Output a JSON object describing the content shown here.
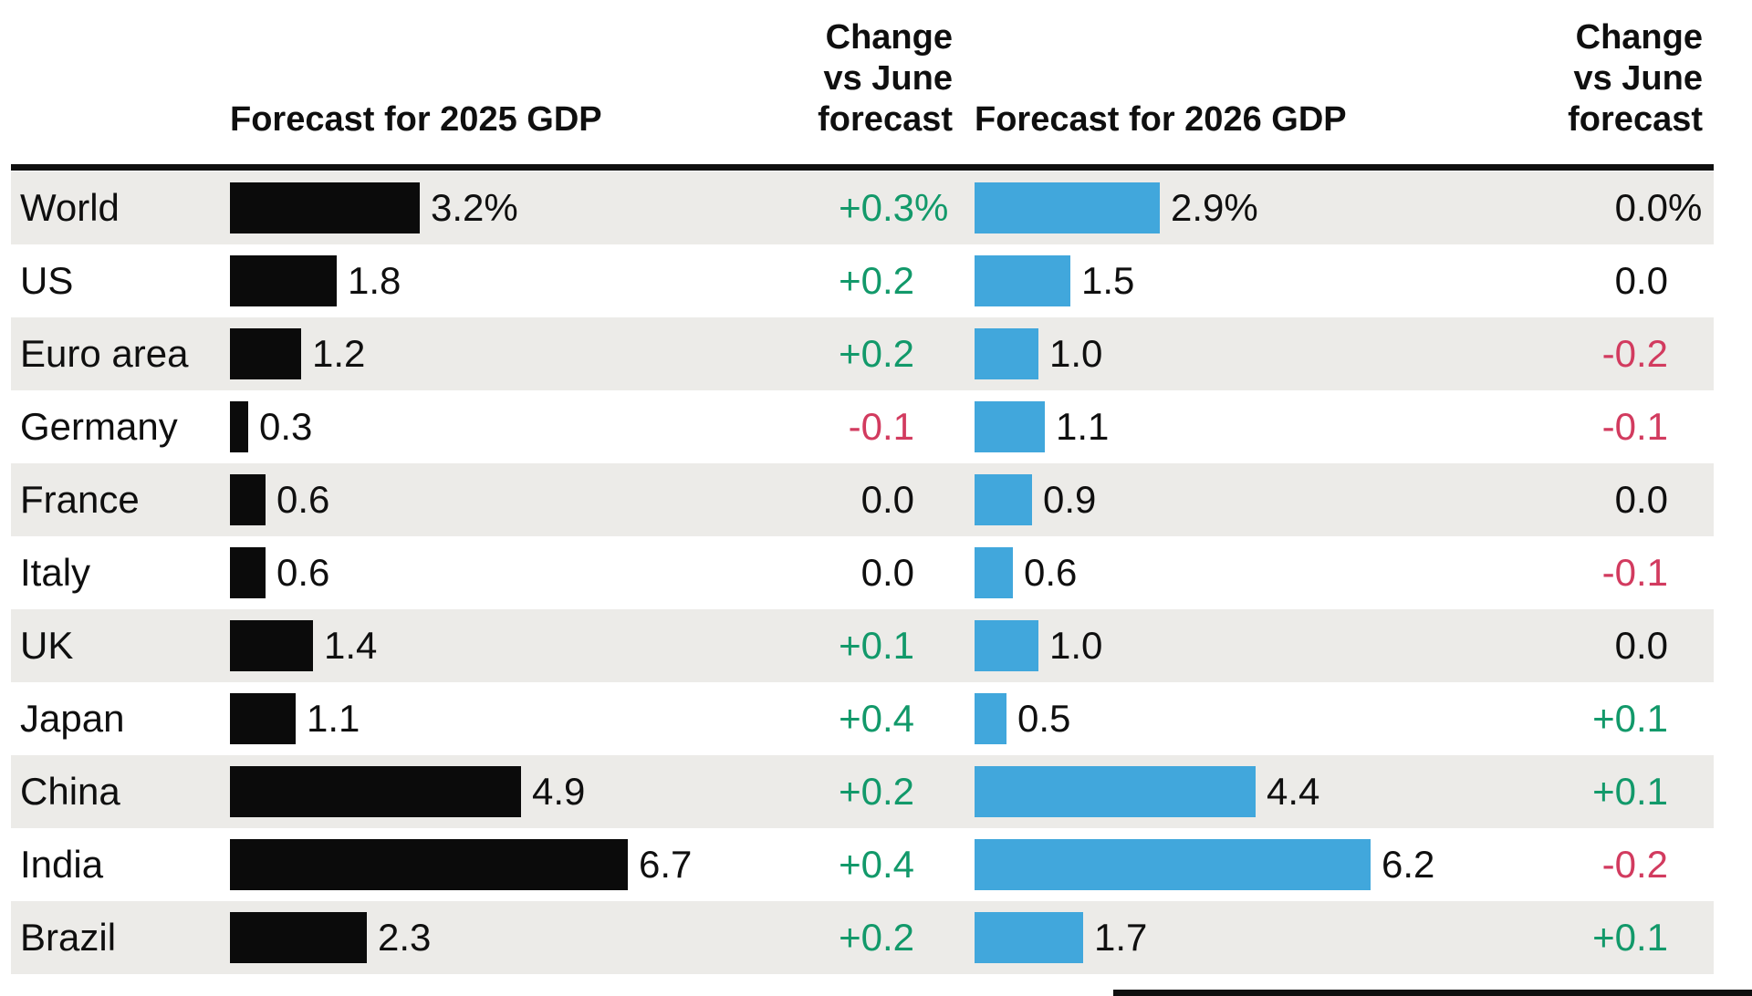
{
  "headers": {
    "forecast_2025": "Forecast for 2025 GDP",
    "change_2025_lines": [
      "Change",
      "vs June",
      "forecast"
    ],
    "forecast_2026": "Forecast for 2026 GDP",
    "change_2026_lines": [
      "Change",
      "vs June",
      "forecast"
    ]
  },
  "colors": {
    "ink": "#0f0f0f",
    "bar_black": "#0b0b0b",
    "bar_blue": "#41a7dc",
    "green": "#12996a",
    "red": "#d23b5f",
    "band_gray": "#ecebe8",
    "background": "#ffffff"
  },
  "chart_data": {
    "type": "bar",
    "orientation": "horizontal",
    "layout": "table with two bar columns and two change columns, zebra striping",
    "unit": "%",
    "categories": [
      "World",
      "US",
      "Euro area",
      "Germany",
      "France",
      "Italy",
      "UK",
      "Japan",
      "China",
      "India",
      "Brazil"
    ],
    "series": [
      {
        "name": "Forecast for 2025 GDP",
        "bar_color": "#0b0b0b",
        "values": [
          3.2,
          1.8,
          1.2,
          0.3,
          0.6,
          0.6,
          1.4,
          1.1,
          4.9,
          6.7,
          2.3
        ]
      },
      {
        "name": "Change vs June forecast (2025)",
        "values": [
          0.3,
          0.2,
          0.2,
          -0.1,
          0.0,
          0.0,
          0.1,
          0.4,
          0.2,
          0.4,
          0.2
        ]
      },
      {
        "name": "Forecast for 2026 GDP",
        "bar_color": "#41a7dc",
        "values": [
          2.9,
          1.5,
          1.0,
          1.1,
          0.9,
          0.6,
          1.0,
          0.5,
          4.4,
          6.2,
          1.7
        ]
      },
      {
        "name": "Change vs June forecast (2026)",
        "values": [
          0.0,
          0.0,
          -0.2,
          -0.1,
          0.0,
          -0.1,
          0.0,
          0.1,
          0.1,
          -0.2,
          0.1
        ]
      }
    ],
    "rows": [
      {
        "label": "World",
        "gdp_2025": 3.2,
        "gdp_2025_display": "3.2%",
        "change_2025_display": "+0.3",
        "gdp_2026": 2.9,
        "gdp_2026_display": "2.9%",
        "change_2026_display": "0.0",
        "percent_sign_on_changes": true
      },
      {
        "label": "US",
        "gdp_2025": 1.8,
        "gdp_2025_display": "1.8",
        "change_2025_display": "+0.2",
        "gdp_2026": 1.5,
        "gdp_2026_display": "1.5",
        "change_2026_display": "0.0",
        "percent_sign_on_changes": false
      },
      {
        "label": "Euro area",
        "gdp_2025": 1.2,
        "gdp_2025_display": "1.2",
        "change_2025_display": "+0.2",
        "gdp_2026": 1.0,
        "gdp_2026_display": "1.0",
        "change_2026_display": "-0.2",
        "percent_sign_on_changes": false
      },
      {
        "label": "Germany",
        "gdp_2025": 0.3,
        "gdp_2025_display": "0.3",
        "change_2025_display": "-0.1",
        "gdp_2026": 1.1,
        "gdp_2026_display": "1.1",
        "change_2026_display": "-0.1",
        "percent_sign_on_changes": false
      },
      {
        "label": "France",
        "gdp_2025": 0.6,
        "gdp_2025_display": "0.6",
        "change_2025_display": "0.0",
        "gdp_2026": 0.9,
        "gdp_2026_display": "0.9",
        "change_2026_display": "0.0",
        "percent_sign_on_changes": false
      },
      {
        "label": "Italy",
        "gdp_2025": 0.6,
        "gdp_2025_display": "0.6",
        "change_2025_display": "0.0",
        "gdp_2026": 0.6,
        "gdp_2026_display": "0.6",
        "change_2026_display": "-0.1",
        "percent_sign_on_changes": false
      },
      {
        "label": "UK",
        "gdp_2025": 1.4,
        "gdp_2025_display": "1.4",
        "change_2025_display": "+0.1",
        "gdp_2026": 1.0,
        "gdp_2026_display": "1.0",
        "change_2026_display": "0.0",
        "percent_sign_on_changes": false
      },
      {
        "label": "Japan",
        "gdp_2025": 1.1,
        "gdp_2025_display": "1.1",
        "change_2025_display": "+0.4",
        "gdp_2026": 0.5,
        "gdp_2026_display": "0.5",
        "change_2026_display": "+0.1",
        "percent_sign_on_changes": false
      },
      {
        "label": "China",
        "gdp_2025": 4.9,
        "gdp_2025_display": "4.9",
        "change_2025_display": "+0.2",
        "gdp_2026": 4.4,
        "gdp_2026_display": "4.4",
        "change_2026_display": "+0.1",
        "percent_sign_on_changes": false
      },
      {
        "label": "India",
        "gdp_2025": 6.7,
        "gdp_2025_display": "6.7",
        "change_2025_display": "+0.4",
        "gdp_2026": 6.2,
        "gdp_2026_display": "6.2",
        "change_2026_display": "-0.2",
        "percent_sign_on_changes": false
      },
      {
        "label": "Brazil",
        "gdp_2025": 2.3,
        "gdp_2025_display": "2.3",
        "change_2025_display": "+0.2",
        "gdp_2026": 1.7,
        "gdp_2026_display": "1.7",
        "change_2026_display": "+0.1",
        "percent_sign_on_changes": false
      }
    ]
  }
}
